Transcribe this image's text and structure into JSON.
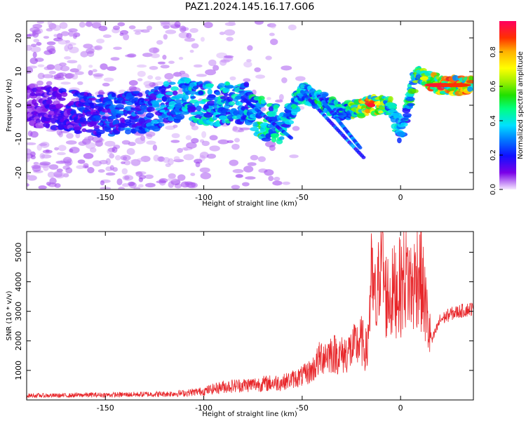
{
  "title": "PAZ1.2024.145.16.17.G06",
  "colors": {
    "snr_line": "#e8262a",
    "frame": "#000000",
    "background": "#ffffff"
  },
  "chart_data": [
    {
      "type": "heatmap",
      "xlabel": "Height of straight line (km)",
      "ylabel": "Frequency (Hz)",
      "xlim": [
        -190,
        37
      ],
      "ylim": [
        -25,
        25
      ],
      "xticks": [
        -150,
        -100,
        -50,
        0
      ],
      "yticks": [
        -20,
        -10,
        0,
        10,
        20
      ],
      "colorscale": "gist_ncar-like (white → purple → blue → cyan → green → yellow → orange → red)",
      "colorbar": {
        "label": "Normalized spectral amplitude",
        "range": [
          0,
          0.98
        ],
        "ticks": [
          0.0,
          0.2,
          0.4,
          0.6,
          0.8
        ]
      },
      "ridge": [
        {
          "x": -190,
          "y": 0,
          "amp": 0.12
        },
        {
          "x": -150,
          "y": -3,
          "amp": 0.28
        },
        {
          "x": -130,
          "y": -2,
          "amp": 0.3
        },
        {
          "x": -110,
          "y": 2,
          "amp": 0.4
        },
        {
          "x": -95,
          "y": 0,
          "amp": 0.45
        },
        {
          "x": -80,
          "y": 1,
          "amp": 0.4
        },
        {
          "x": -70,
          "y": -4,
          "amp": 0.55
        },
        {
          "x": -60,
          "y": -6,
          "amp": 0.45
        },
        {
          "x": -50,
          "y": 4,
          "amp": 0.45
        },
        {
          "x": -40,
          "y": 1,
          "amp": 0.5
        },
        {
          "x": -30,
          "y": -2,
          "amp": 0.45
        },
        {
          "x": -15,
          "y": 0,
          "amp": 0.9
        },
        {
          "x": -5,
          "y": 0,
          "amp": 0.6
        },
        {
          "x": 0,
          "y": -8,
          "amp": 0.35
        },
        {
          "x": 8,
          "y": 9,
          "amp": 0.65
        },
        {
          "x": 20,
          "y": 6,
          "amp": 0.92
        },
        {
          "x": 37,
          "y": 6,
          "amp": 0.85
        }
      ]
    },
    {
      "type": "line",
      "xlabel": "Height of straight line (km)",
      "ylabel": "SNR (10 * v/v)",
      "xlim": [
        -190,
        37
      ],
      "ylim": [
        0,
        5700
      ],
      "xticks": [
        -150,
        -100,
        -50,
        0
      ],
      "yticks": [
        1000,
        2000,
        3000,
        4000,
        5000
      ],
      "series": [
        {
          "x": [
            -190,
            -180,
            -170,
            -160,
            -150,
            -140,
            -130,
            -120,
            -110,
            -100,
            -90,
            -80,
            -70,
            -60,
            -50,
            -45,
            -40,
            -35,
            -30,
            -25,
            -20,
            -17,
            -15,
            -12,
            -10,
            -8,
            -5,
            -2,
            0,
            3,
            6,
            9,
            12,
            14,
            16,
            20,
            25,
            30,
            37
          ],
          "y": [
            150,
            150,
            150,
            170,
            170,
            180,
            190,
            200,
            230,
            300,
            450,
            500,
            550,
            600,
            800,
            1000,
            1500,
            1600,
            1500,
            1700,
            2000,
            1600,
            4000,
            3000,
            5700,
            3600,
            3500,
            3800,
            3800,
            4300,
            3700,
            4500,
            3500,
            2500,
            2000,
            2700,
            2900,
            3000,
            3100
          ]
        }
      ]
    }
  ]
}
